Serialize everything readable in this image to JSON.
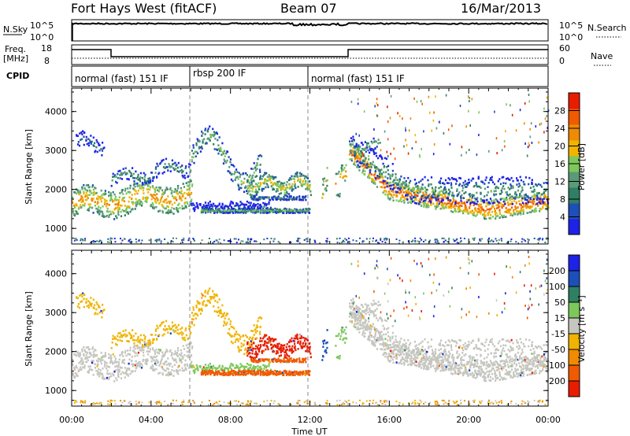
{
  "header": {
    "radar": "Fort Hays West (fitACF)",
    "beam": "Beam 07",
    "date": "16/Mar/2013"
  },
  "noise_panel": {
    "left_label": "N.Sky",
    "right_label": "N.Search",
    "tick_top": "10^5",
    "tick_bottom": "10^0"
  },
  "freq_panel": {
    "left_label_1": "Freq.",
    "left_label_2": "[MHz]",
    "right_label": "Nave",
    "left_ticks": [
      "18",
      "8"
    ],
    "right_ticks": [
      "60",
      "0"
    ]
  },
  "cpid_panel": {
    "label": "CPID",
    "segments": [
      "normal (fast) 151 IF",
      "rbsp 200 IF",
      "normal (fast) 151 IF"
    ]
  },
  "colors": {
    "power": [
      "#1e22e6",
      "#1d4fb8",
      "#2f7f64",
      "#5a9a78",
      "#7dc85a",
      "#f0b400",
      "#f08a00",
      "#f05a00",
      "#e81c00"
    ],
    "velocity": [
      "#e81c00",
      "#f05a00",
      "#f08a00",
      "#f0b400",
      "#c6c6c0",
      "#7dc85a",
      "#2f7f64",
      "#1d4fb8",
      "#1e22e6"
    ]
  },
  "chart_data": [
    {
      "type": "heatmap",
      "panel": "power",
      "ylabel": "Slant Range [km]",
      "xlabel": "",
      "x_ticks": [
        "00:00",
        "04:00",
        "08:00",
        "12:00",
        "16:00",
        "20:00",
        "00:00"
      ],
      "y_ticks": [
        "1000",
        "2000",
        "3000",
        "4000"
      ],
      "ylim": [
        600,
        4600
      ],
      "xlim_hours": [
        0,
        24
      ],
      "colorbar": {
        "label": "Power [dB]",
        "ticks": [
          "4",
          "8",
          "12",
          "16",
          "20",
          "24",
          "28"
        ]
      },
      "grid": false
    },
    {
      "type": "heatmap",
      "panel": "velocity",
      "ylabel": "Slant Range [km]",
      "xlabel": "Time UT",
      "x_ticks": [
        "00:00",
        "04:00",
        "08:00",
        "12:00",
        "16:00",
        "20:00",
        "00:00"
      ],
      "y_ticks": [
        "1000",
        "2000",
        "3000",
        "4000"
      ],
      "ylim": [
        600,
        4600
      ],
      "xlim_hours": [
        0,
        24
      ],
      "colorbar": {
        "label": "Velocity [m s⁻¹]",
        "ticks": [
          "200",
          "100",
          "50",
          "15",
          "-15",
          "-50",
          "-100",
          "-200"
        ]
      },
      "grid": false
    }
  ]
}
